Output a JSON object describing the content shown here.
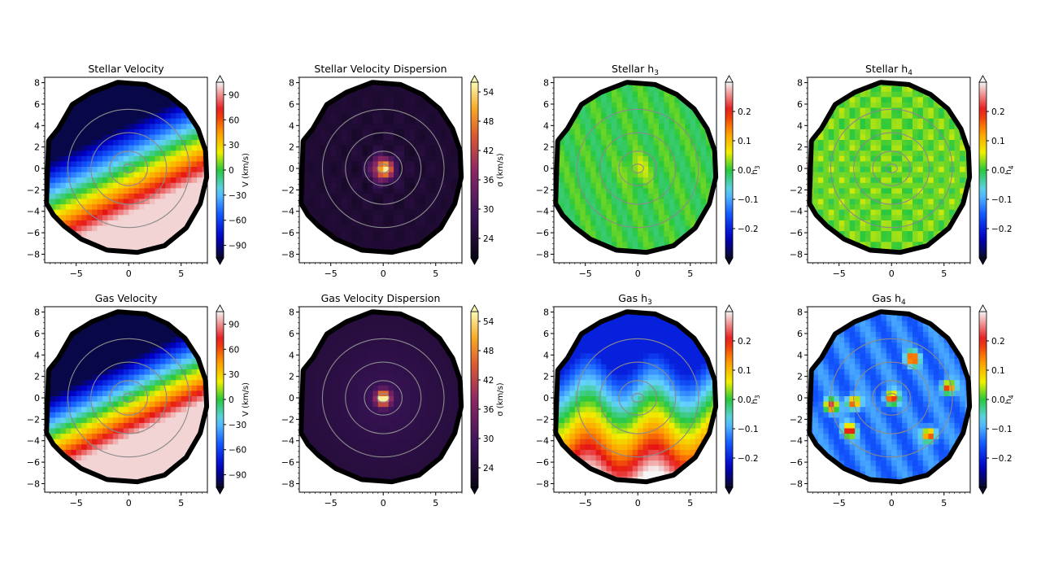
{
  "figure": {
    "panels": [
      {
        "title": "Stellar Velocity",
        "map": "velocity",
        "cbar": "velocity"
      },
      {
        "title": "Stellar Velocity Dispersion",
        "map": "dispersion",
        "cbar": "dispersion"
      },
      {
        "title": "Stellar h3",
        "title_main": "Stellar h",
        "title_sub": "3",
        "map": "h3star",
        "cbar": "h3"
      },
      {
        "title": "Stellar h4",
        "title_main": "Stellar h",
        "title_sub": "4",
        "map": "h4star",
        "cbar": "h4"
      },
      {
        "title": "Gas Velocity",
        "map": "velocity_gas",
        "cbar": "velocity"
      },
      {
        "title": "Gas Velocity Dispersion",
        "map": "dispersion_gas",
        "cbar": "dispersion"
      },
      {
        "title": "Gas h3",
        "title_main": "Gas h",
        "title_sub": "3",
        "map": "h3gas",
        "cbar": "h3"
      },
      {
        "title": "Gas h4",
        "title_main": "Gas h",
        "title_sub": "4",
        "map": "h4gas",
        "cbar": "h4"
      }
    ],
    "colorbars": {
      "velocity": {
        "label": "V (km/s)",
        "ticks": [
          "90",
          "60",
          "30",
          "0",
          "−30",
          "−60",
          "−90"
        ],
        "tick_values": [
          90,
          60,
          30,
          0,
          -30,
          -60,
          -90
        ],
        "range": [
          -105,
          105
        ],
        "colormap": "jet-white"
      },
      "dispersion": {
        "label": "σ (km/s)",
        "ticks": [
          "54",
          "48",
          "42",
          "36",
          "30",
          "24"
        ],
        "tick_values": [
          54,
          48,
          42,
          36,
          30,
          24
        ],
        "range": [
          20,
          56
        ],
        "colormap": "inferno"
      },
      "h3": {
        "label_main": "h",
        "label_sub": "3",
        "ticks": [
          "0.2",
          "0.1",
          "0.0",
          "−0.1",
          "−0.2"
        ],
        "tick_values": [
          0.2,
          0.1,
          0.0,
          -0.1,
          -0.2
        ],
        "range": [
          -0.3,
          0.3
        ],
        "colormap": "jet-white"
      },
      "h4": {
        "label_main": "h",
        "label_sub": "4",
        "ticks": [
          "0.2",
          "0.1",
          "0.0",
          "−0.1",
          "−0.2"
        ],
        "tick_values": [
          0.2,
          0.1,
          0.0,
          -0.1,
          -0.2
        ],
        "range": [
          -0.3,
          0.3
        ],
        "colormap": "jet-white"
      }
    },
    "colors": {
      "mask": "#000000",
      "contour": "#8a8a8a",
      "frame": "#000000",
      "background": "#ffffff"
    }
  },
  "chart_data": [
    {
      "type": "heatmap",
      "title": "Stellar Velocity",
      "xlabel": "",
      "ylabel": "",
      "xlim": [
        -8,
        7.5
      ],
      "ylim": [
        -8.8,
        8.5
      ],
      "x_ticks": [
        "−5",
        "0",
        "5"
      ],
      "x_tick_values": [
        -5,
        0,
        5
      ],
      "y_ticks": [
        "8",
        "6",
        "4",
        "2",
        "0",
        "−2",
        "−4",
        "−6",
        "−8"
      ],
      "y_tick_values": [
        8,
        6,
        4,
        2,
        0,
        -2,
        -4,
        -6,
        -8
      ],
      "colorbar_label": "V (km/s)",
      "range": [
        -105,
        105
      ]
    },
    {
      "type": "heatmap",
      "title": "Stellar Velocity Dispersion",
      "xlabel": "",
      "ylabel": "",
      "xlim": [
        -8,
        7.5
      ],
      "ylim": [
        -8.8,
        8.5
      ],
      "x_ticks": [
        "−5",
        "0",
        "5"
      ],
      "x_tick_values": [
        -5,
        0,
        5
      ],
      "y_ticks": [
        "8",
        "6",
        "4",
        "2",
        "0",
        "−2",
        "−4",
        "−6",
        "−8"
      ],
      "y_tick_values": [
        8,
        6,
        4,
        2,
        0,
        -2,
        -4,
        -6,
        -8
      ],
      "colorbar_label": "σ (km/s)",
      "range": [
        20,
        56
      ]
    },
    {
      "type": "heatmap",
      "title": "Stellar h3",
      "xlabel": "",
      "ylabel": "",
      "xlim": [
        -8,
        7.5
      ],
      "ylim": [
        -8.8,
        8.5
      ],
      "x_ticks": [
        "−5",
        "0",
        "5"
      ],
      "x_tick_values": [
        -5,
        0,
        5
      ],
      "y_ticks": [
        "8",
        "6",
        "4",
        "2",
        "0",
        "−2",
        "−4",
        "−6",
        "−8"
      ],
      "y_tick_values": [
        8,
        6,
        4,
        2,
        0,
        -2,
        -4,
        -6,
        -8
      ],
      "colorbar_label": "h3",
      "range": [
        -0.3,
        0.3
      ]
    },
    {
      "type": "heatmap",
      "title": "Stellar h4",
      "xlabel": "",
      "ylabel": "",
      "xlim": [
        -8,
        7.5
      ],
      "ylim": [
        -8.8,
        8.5
      ],
      "x_ticks": [
        "−5",
        "0",
        "5"
      ],
      "x_tick_values": [
        -5,
        0,
        5
      ],
      "y_ticks": [
        "8",
        "6",
        "4",
        "2",
        "0",
        "−2",
        "−4",
        "−6",
        "−8"
      ],
      "y_tick_values": [
        8,
        6,
        4,
        2,
        0,
        -2,
        -4,
        -6,
        -8
      ],
      "colorbar_label": "h4",
      "range": [
        -0.3,
        0.3
      ]
    },
    {
      "type": "heatmap",
      "title": "Gas Velocity",
      "xlabel": "",
      "ylabel": "",
      "xlim": [
        -8,
        7.5
      ],
      "ylim": [
        -8.8,
        8.5
      ],
      "x_ticks": [
        "−5",
        "0",
        "5"
      ],
      "x_tick_values": [
        -5,
        0,
        5
      ],
      "y_ticks": [
        "8",
        "6",
        "4",
        "2",
        "0",
        "−2",
        "−4",
        "−6",
        "−8"
      ],
      "y_tick_values": [
        8,
        6,
        4,
        2,
        0,
        -2,
        -4,
        -6,
        -8
      ],
      "colorbar_label": "V (km/s)",
      "range": [
        -105,
        105
      ]
    },
    {
      "type": "heatmap",
      "title": "Gas Velocity Dispersion",
      "xlabel": "",
      "ylabel": "",
      "xlim": [
        -8,
        7.5
      ],
      "ylim": [
        -8.8,
        8.5
      ],
      "x_ticks": [
        "−5",
        "0",
        "5"
      ],
      "x_tick_values": [
        -5,
        0,
        5
      ],
      "y_ticks": [
        "8",
        "6",
        "4",
        "2",
        "0",
        "−2",
        "−4",
        "−6",
        "−8"
      ],
      "y_tick_values": [
        8,
        6,
        4,
        2,
        0,
        -2,
        -4,
        -6,
        -8
      ],
      "colorbar_label": "σ (km/s)",
      "range": [
        20,
        56
      ]
    },
    {
      "type": "heatmap",
      "title": "Gas h3",
      "xlabel": "",
      "ylabel": "",
      "xlim": [
        -8,
        7.5
      ],
      "ylim": [
        -8.8,
        8.5
      ],
      "x_ticks": [
        "−5",
        "0",
        "5"
      ],
      "x_tick_values": [
        -5,
        0,
        5
      ],
      "y_ticks": [
        "8",
        "6",
        "4",
        "2",
        "0",
        "−2",
        "−4",
        "−6",
        "−8"
      ],
      "y_tick_values": [
        8,
        6,
        4,
        2,
        0,
        -2,
        -4,
        -6,
        -8
      ],
      "colorbar_label": "h3",
      "range": [
        -0.3,
        0.3
      ]
    },
    {
      "type": "heatmap",
      "title": "Gas h4",
      "xlabel": "",
      "ylabel": "",
      "xlim": [
        -8,
        7.5
      ],
      "ylim": [
        -8.8,
        8.5
      ],
      "x_ticks": [
        "−5",
        "0",
        "5"
      ],
      "x_tick_values": [
        -5,
        0,
        5
      ],
      "y_ticks": [
        "8",
        "6",
        "4",
        "2",
        "0",
        "−2",
        "−4",
        "−6",
        "−8"
      ],
      "y_tick_values": [
        8,
        6,
        4,
        2,
        0,
        -2,
        -4,
        -6,
        -8
      ],
      "colorbar_label": "h4",
      "range": [
        -0.3,
        0.3
      ]
    }
  ]
}
